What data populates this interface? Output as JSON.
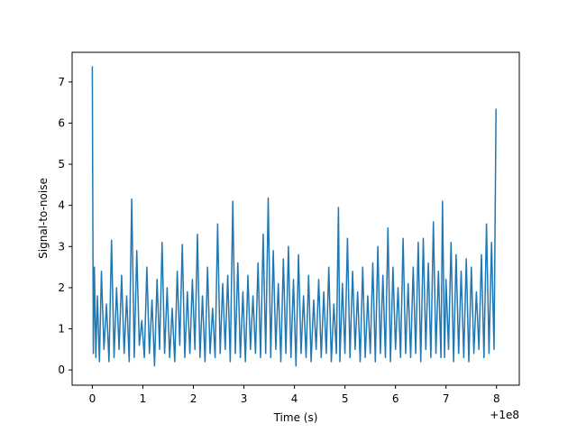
{
  "chart_data": {
    "type": "line",
    "title": "",
    "xlabel": "Time (s)",
    "ylabel": "Signal-to-noise",
    "x_offset_label": "+1e8",
    "xlim": [
      -0.4,
      8.45
    ],
    "ylim": [
      -0.37,
      7.72
    ],
    "xticks": [
      0,
      1,
      2,
      3,
      4,
      5,
      6,
      7,
      8
    ],
    "yticks": [
      0,
      1,
      2,
      3,
      4,
      5,
      6,
      7
    ],
    "grid": false,
    "line_color": "#1f77b4",
    "series": [
      {
        "sampled": true,
        "x": [
          0.0,
          0.02,
          0.04,
          0.07,
          0.1,
          0.14,
          0.18,
          0.23,
          0.28,
          0.33,
          0.38,
          0.43,
          0.48,
          0.53,
          0.58,
          0.63,
          0.68,
          0.73,
          0.78,
          0.83,
          0.88,
          0.93,
          0.98,
          1.03,
          1.08,
          1.13,
          1.18,
          1.23,
          1.28,
          1.33,
          1.38,
          1.43,
          1.48,
          1.53,
          1.58,
          1.63,
          1.68,
          1.73,
          1.78,
          1.83,
          1.88,
          1.93,
          1.98,
          2.03,
          2.08,
          2.13,
          2.18,
          2.23,
          2.28,
          2.33,
          2.38,
          2.43,
          2.48,
          2.53,
          2.58,
          2.63,
          2.68,
          2.73,
          2.78,
          2.83,
          2.88,
          2.93,
          2.98,
          3.03,
          3.08,
          3.13,
          3.18,
          3.23,
          3.28,
          3.33,
          3.38,
          3.43,
          3.48,
          3.53,
          3.58,
          3.63,
          3.68,
          3.73,
          3.78,
          3.83,
          3.88,
          3.93,
          3.98,
          4.03,
          4.08,
          4.13,
          4.18,
          4.23,
          4.28,
          4.33,
          4.38,
          4.43,
          4.48,
          4.53,
          4.58,
          4.63,
          4.68,
          4.73,
          4.78,
          4.83,
          4.87,
          4.9,
          4.95,
          5.0,
          5.05,
          5.1,
          5.15,
          5.2,
          5.25,
          5.3,
          5.35,
          5.4,
          5.45,
          5.5,
          5.55,
          5.6,
          5.65,
          5.7,
          5.75,
          5.8,
          5.85,
          5.9,
          5.95,
          6.0,
          6.05,
          6.1,
          6.15,
          6.2,
          6.25,
          6.3,
          6.35,
          6.4,
          6.45,
          6.5,
          6.55,
          6.6,
          6.65,
          6.7,
          6.75,
          6.8,
          6.85,
          6.9,
          6.93,
          6.97,
          7.0,
          7.05,
          7.1,
          7.15,
          7.2,
          7.25,
          7.3,
          7.35,
          7.4,
          7.45,
          7.5,
          7.55,
          7.6,
          7.65,
          7.7,
          7.75,
          7.8,
          7.85,
          7.9,
          7.95,
          7.99
        ],
        "y": [
          7.38,
          0.4,
          2.5,
          0.3,
          1.8,
          0.2,
          2.4,
          0.5,
          1.6,
          0.2,
          3.15,
          0.3,
          2.0,
          0.5,
          2.3,
          0.4,
          1.8,
          0.2,
          4.15,
          0.3,
          2.9,
          0.6,
          1.2,
          0.3,
          2.5,
          0.4,
          1.7,
          0.1,
          2.2,
          0.5,
          3.1,
          0.4,
          2.0,
          0.3,
          1.5,
          0.2,
          2.4,
          0.6,
          3.05,
          0.3,
          1.9,
          0.4,
          2.2,
          0.5,
          3.3,
          0.3,
          1.8,
          0.2,
          2.5,
          0.4,
          1.5,
          0.3,
          3.55,
          0.4,
          2.1,
          0.5,
          2.3,
          0.2,
          4.1,
          0.4,
          2.6,
          0.3,
          1.9,
          0.2,
          2.3,
          0.5,
          1.8,
          0.4,
          2.6,
          0.3,
          3.3,
          0.4,
          4.18,
          0.3,
          2.9,
          0.5,
          2.1,
          0.2,
          2.7,
          0.4,
          3.0,
          0.3,
          2.2,
          0.1,
          2.8,
          0.4,
          1.8,
          0.3,
          2.3,
          0.2,
          1.7,
          0.5,
          2.2,
          0.3,
          1.9,
          0.4,
          2.5,
          0.2,
          1.6,
          0.4,
          3.95,
          0.2,
          2.1,
          0.4,
          3.2,
          0.3,
          2.4,
          0.5,
          1.9,
          0.2,
          2.5,
          0.3,
          1.8,
          0.4,
          2.6,
          0.2,
          3.0,
          0.4,
          2.3,
          0.3,
          3.45,
          0.2,
          2.5,
          0.5,
          2.0,
          0.3,
          3.2,
          0.4,
          2.1,
          0.3,
          2.5,
          0.4,
          3.1,
          0.2,
          3.2,
          0.5,
          2.6,
          0.3,
          3.6,
          0.4,
          2.4,
          0.3,
          4.1,
          0.3,
          2.2,
          0.5,
          3.1,
          0.2,
          2.8,
          0.4,
          2.4,
          0.3,
          2.7,
          0.2,
          2.5,
          0.4,
          1.9,
          0.5,
          2.8,
          0.3,
          3.55,
          0.4,
          3.1,
          0.5,
          6.35
        ]
      }
    ]
  }
}
